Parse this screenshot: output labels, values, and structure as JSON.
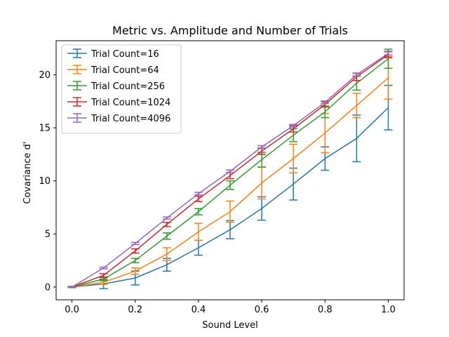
{
  "chart_data": {
    "type": "line",
    "title": "Metric vs. Amplitude and Number of Trials",
    "xlabel": "Sound Level",
    "ylabel": "Covariance d'",
    "xlim": [
      -0.05,
      1.05
    ],
    "ylim": [
      -1.2,
      23.2
    ],
    "xticks": [
      0.0,
      0.2,
      0.4,
      0.6,
      0.8,
      1.0
    ],
    "xtick_labels": [
      "0.0",
      "0.2",
      "0.4",
      "0.6",
      "0.8",
      "1.0"
    ],
    "yticks": [
      0,
      5,
      10,
      15,
      20
    ],
    "ytick_labels": [
      "0",
      "5",
      "10",
      "15",
      "20"
    ],
    "grid": false,
    "legend": "top-left",
    "x": [
      0.0,
      0.1,
      0.2,
      0.3,
      0.4,
      0.5,
      0.6,
      0.7,
      0.8,
      0.9,
      1.0
    ],
    "series": [
      {
        "name": "Trial Count=16",
        "color": "#1f77b4",
        "values": [
          0.0,
          0.3,
          0.85,
          2.1,
          3.7,
          5.4,
          7.4,
          9.7,
          12.1,
          14.0,
          16.9
        ],
        "errors": [
          0.05,
          0.45,
          0.65,
          0.6,
          0.7,
          0.85,
          1.1,
          1.5,
          1.1,
          2.2,
          2.1
        ]
      },
      {
        "name": "Trial Count=64",
        "color": "#ff7f0e",
        "values": [
          0.0,
          0.45,
          1.5,
          3.1,
          5.2,
          7.1,
          9.8,
          12.1,
          14.5,
          17.1,
          19.7
        ],
        "errors": [
          0.05,
          0.2,
          0.3,
          0.6,
          0.8,
          1.0,
          1.5,
          1.35,
          1.85,
          1.15,
          2.0
        ]
      },
      {
        "name": "Trial Count=256",
        "color": "#2ca02c",
        "values": [
          0.0,
          0.75,
          2.5,
          4.8,
          7.1,
          9.6,
          12.0,
          14.3,
          16.5,
          19.2,
          21.5
        ],
        "errors": [
          0.05,
          0.15,
          0.2,
          0.3,
          0.3,
          0.4,
          0.7,
          0.6,
          0.55,
          0.65,
          0.9
        ]
      },
      {
        "name": "Trial Count=1024",
        "color": "#d62728",
        "values": [
          0.0,
          1.1,
          3.4,
          5.9,
          8.3,
          10.5,
          12.8,
          14.9,
          17.2,
          19.8,
          21.9
        ],
        "errors": [
          0.05,
          0.15,
          0.2,
          0.2,
          0.25,
          0.3,
          0.3,
          0.3,
          0.25,
          0.35,
          0.3
        ]
      },
      {
        "name": "Trial Count=4096",
        "color": "#9467bd",
        "values": [
          0.0,
          1.8,
          4.1,
          6.5,
          8.8,
          10.9,
          13.2,
          15.2,
          17.4,
          20.0,
          22.0
        ],
        "errors": [
          0.03,
          0.08,
          0.1,
          0.1,
          0.12,
          0.12,
          0.12,
          0.12,
          0.12,
          0.12,
          0.15
        ]
      }
    ]
  }
}
